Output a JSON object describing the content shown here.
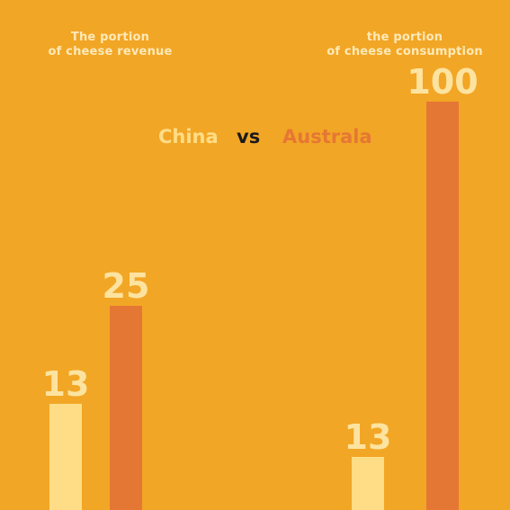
{
  "chart_data": {
    "type": "bar",
    "subtitle_parts": {
      "a": "China",
      "vs": "vs",
      "b": "Australa"
    },
    "colors": {
      "china": "#FFDD87",
      "australia": "#E57734",
      "background": "#F2A625",
      "vs": "#1A1A1A",
      "title": "#FDE9B8"
    },
    "groups": [
      {
        "title_lines": [
          "The portion",
          "of  cheese revenue"
        ],
        "values": [
          {
            "series": "China",
            "value": 13
          },
          {
            "series": "Australa",
            "value": 25
          }
        ],
        "ylim": [
          0,
          50
        ]
      },
      {
        "title_lines": [
          "the portion",
          "of cheese consumption"
        ],
        "values": [
          {
            "series": "China",
            "value": 13
          },
          {
            "series": "Australa",
            "value": 100
          }
        ],
        "ylim": [
          0,
          100
        ]
      }
    ]
  }
}
